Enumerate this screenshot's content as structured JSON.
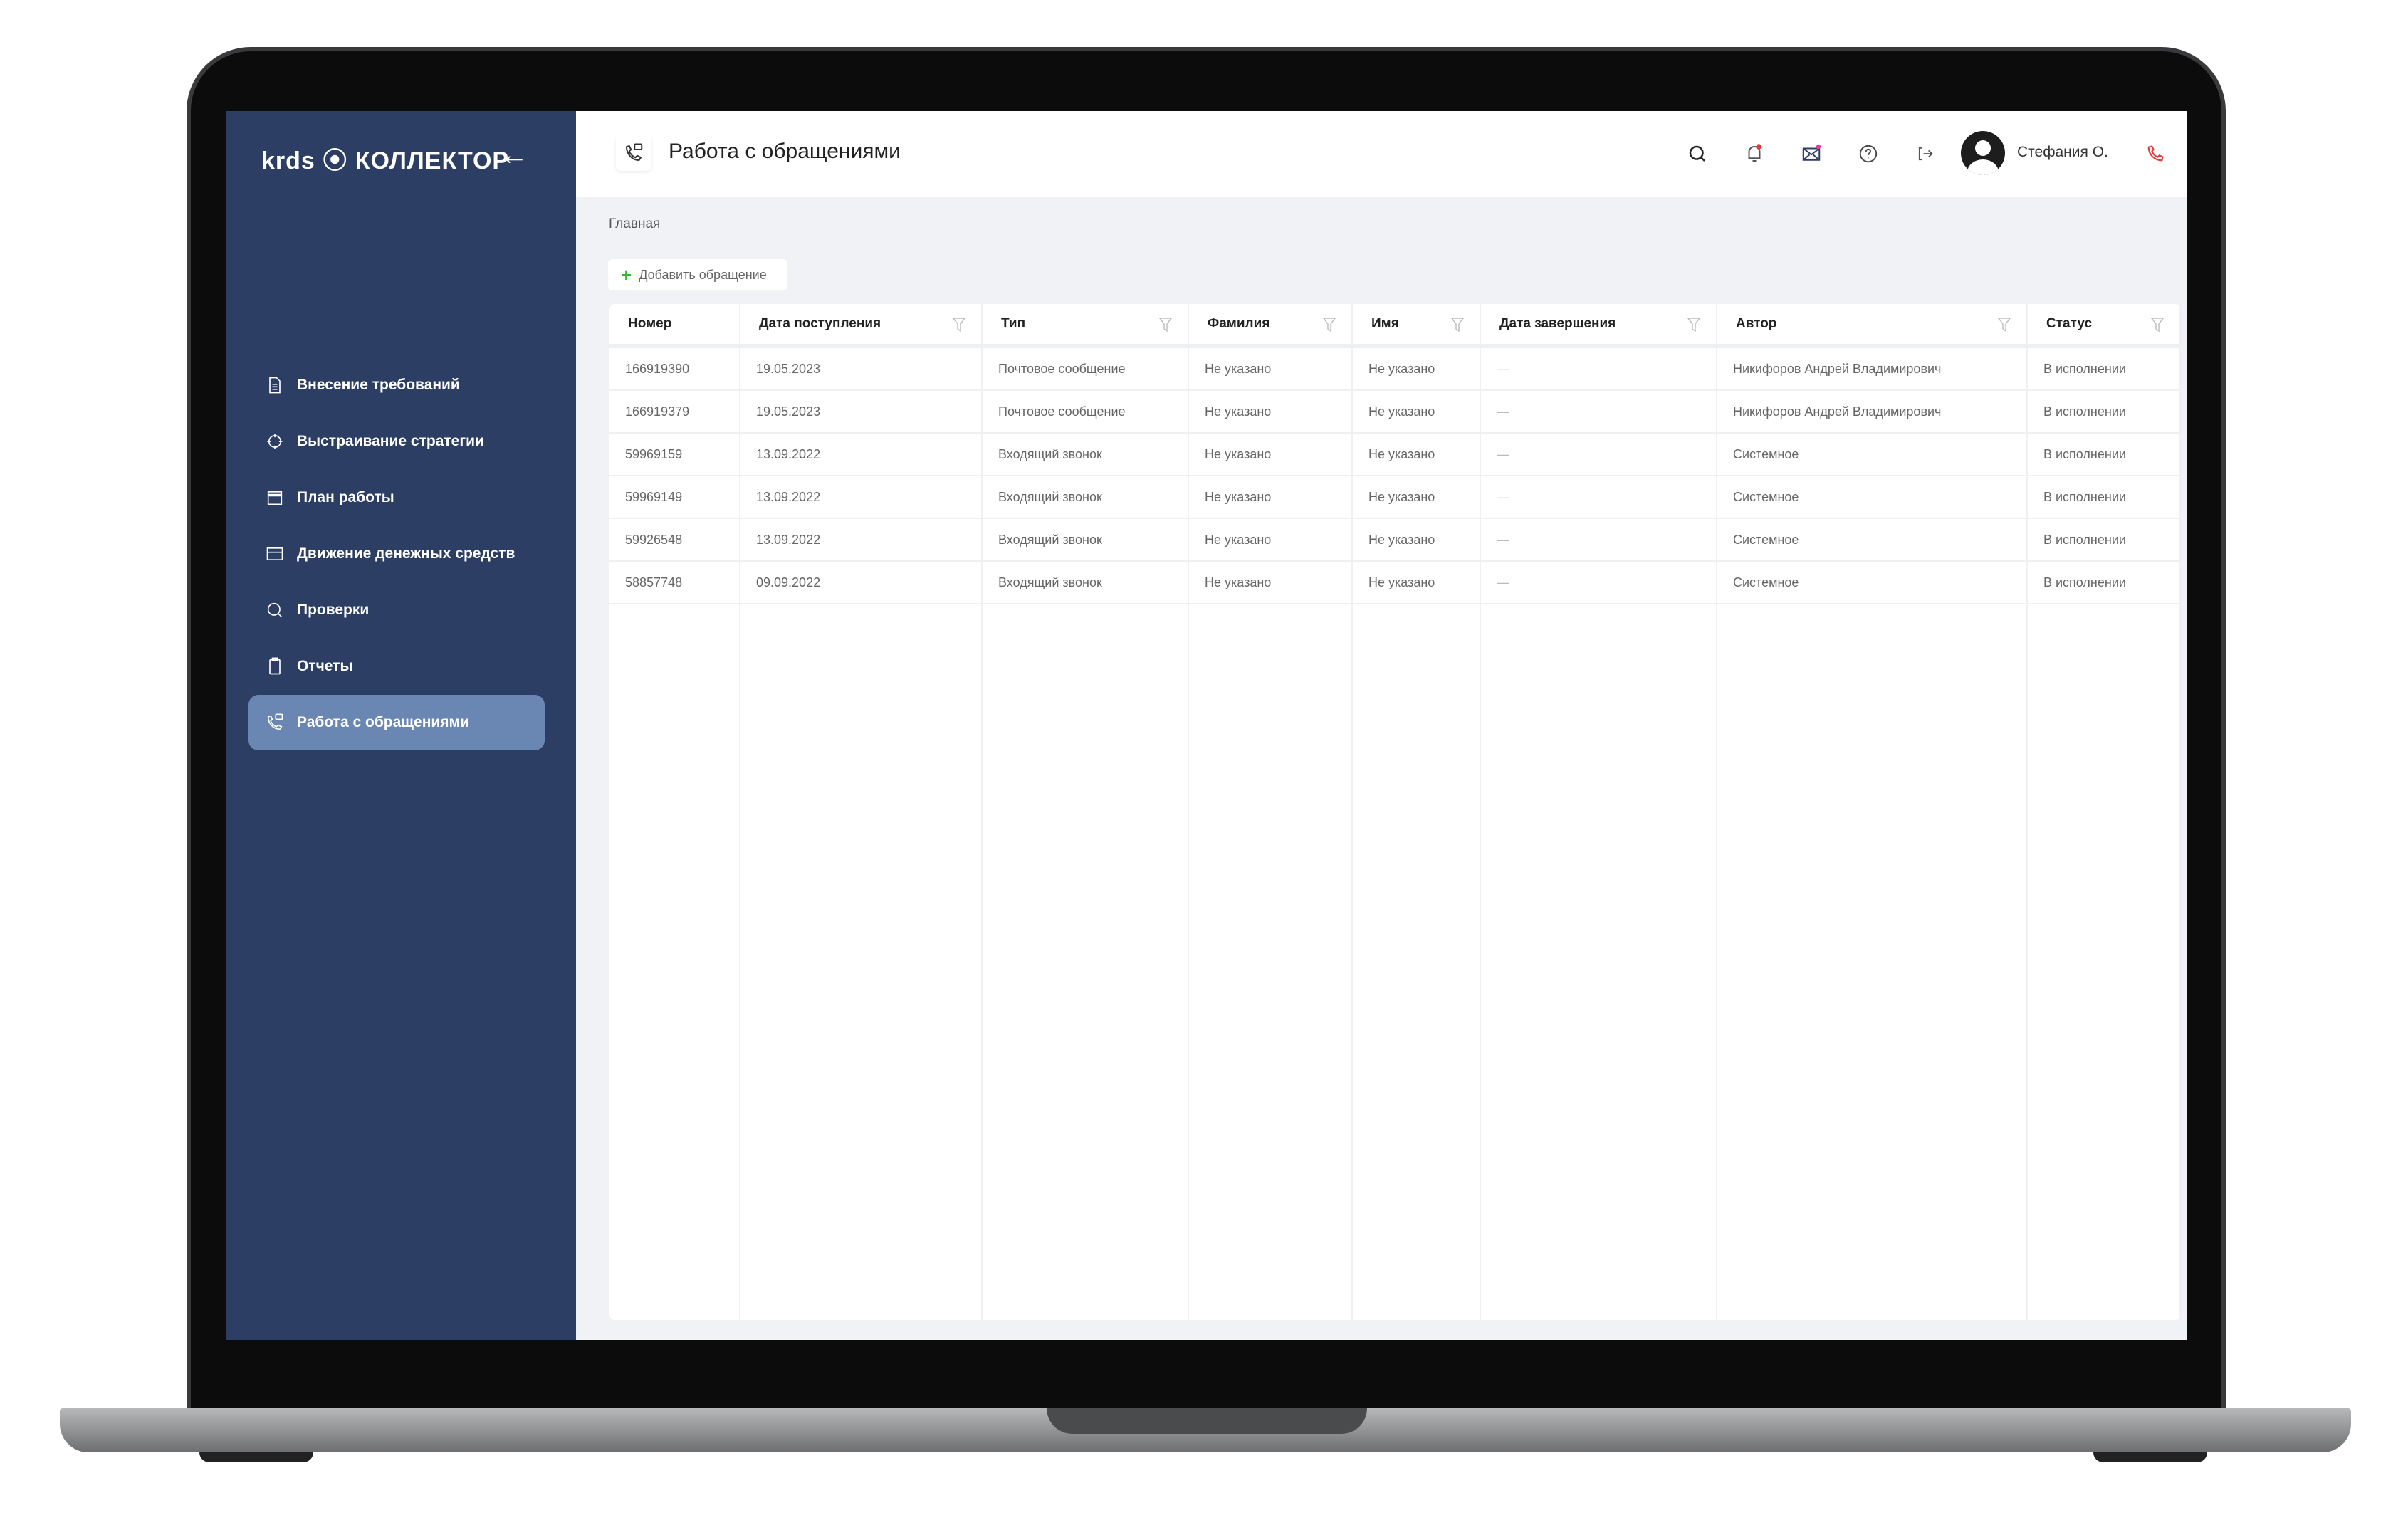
{
  "brand": {
    "logo": "krds ⦿ КОЛЛЕКТОР",
    "accent": "#2c3e63",
    "active": "#6a86b3"
  },
  "sidebar": {
    "items": [
      {
        "label": "Внесение требований",
        "icon": "document-icon"
      },
      {
        "label": "Выстраивание стратегии",
        "icon": "target-icon"
      },
      {
        "label": "План работы",
        "icon": "calendar-icon"
      },
      {
        "label": "Движение денежных средств",
        "icon": "card-icon"
      },
      {
        "label": "Проверки",
        "icon": "search-icon"
      },
      {
        "label": "Отчеты",
        "icon": "clipboard-icon"
      },
      {
        "label": "Работа с обращениями",
        "icon": "phone-chat-icon",
        "active": true
      }
    ]
  },
  "header": {
    "title": "Работа с обращениями",
    "user": "Стефания О."
  },
  "breadcrumb": "Главная",
  "add_button": "Добавить обращение",
  "table": {
    "columns": [
      "Номер",
      "Дата поступления",
      "Тип",
      "Фамилия",
      "Имя",
      "Дата завершения",
      "Автор",
      "Статус"
    ],
    "rows": [
      [
        "166919390",
        "19.05.2023",
        "Почтовое сообщение",
        "Не указано",
        "Не указано",
        "—",
        "Никифоров Андрей Владимирович",
        "В исполнении"
      ],
      [
        "166919379",
        "19.05.2023",
        "Почтовое сообщение",
        "Не указано",
        "Не указано",
        "—",
        "Никифоров Андрей Владимирович",
        "В исполнении"
      ],
      [
        "59969159",
        "13.09.2022",
        "Входящий звонок",
        "Не указано",
        "Не указано",
        "—",
        "Системное",
        "В исполнении"
      ],
      [
        "59969149",
        "13.09.2022",
        "Входящий звонок",
        "Не указано",
        "Не указано",
        "—",
        "Системное",
        "В исполнении"
      ],
      [
        "59926548",
        "13.09.2022",
        "Входящий звонок",
        "Не указано",
        "Не указано",
        "—",
        "Системное",
        "В исполнении"
      ],
      [
        "58857748",
        "09.09.2022",
        "Входящий звонок",
        "Не указано",
        "Не указано",
        "—",
        "Системное",
        "В исполнении"
      ]
    ]
  }
}
